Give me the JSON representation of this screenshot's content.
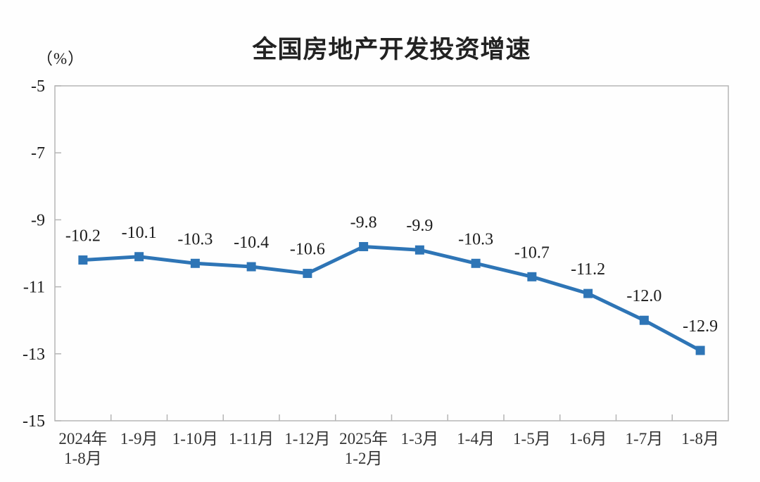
{
  "chart_data": {
    "type": "line",
    "title": "全国房地产开发投资增速",
    "unit_label": "（%）",
    "categories": [
      [
        "2024年",
        "1-8月"
      ],
      [
        "1-9月"
      ],
      [
        "1-10月"
      ],
      [
        "1-11月"
      ],
      [
        "1-12月"
      ],
      [
        "2025年",
        "1-2月"
      ],
      [
        "1-3月"
      ],
      [
        "1-4月"
      ],
      [
        "1-5月"
      ],
      [
        "1-6月"
      ],
      [
        "1-7月"
      ],
      [
        "1-8月"
      ]
    ],
    "series": [
      {
        "name": "全国房地产开发投资增速",
        "values": [
          -10.2,
          -10.1,
          -10.3,
          -10.4,
          -10.6,
          -9.8,
          -9.9,
          -10.3,
          -10.7,
          -11.2,
          -12.0,
          -12.9
        ]
      }
    ],
    "data_labels": [
      "-10.2",
      "-10.1",
      "-10.3",
      "-10.4",
      "-10.6",
      "-9.8",
      "-9.9",
      "-10.3",
      "-10.7",
      "-11.2",
      "-12.0",
      "-12.9"
    ],
    "ylim": [
      -15,
      -5
    ],
    "yticks": [
      "-5",
      "-7",
      "-9",
      "-11",
      "-13",
      "-15"
    ],
    "grid": "off",
    "legend": "none",
    "line_color": "#2E75B6",
    "marker": "square",
    "axis_color": "#b5b5b5",
    "text_color": "#1c1c1c"
  }
}
